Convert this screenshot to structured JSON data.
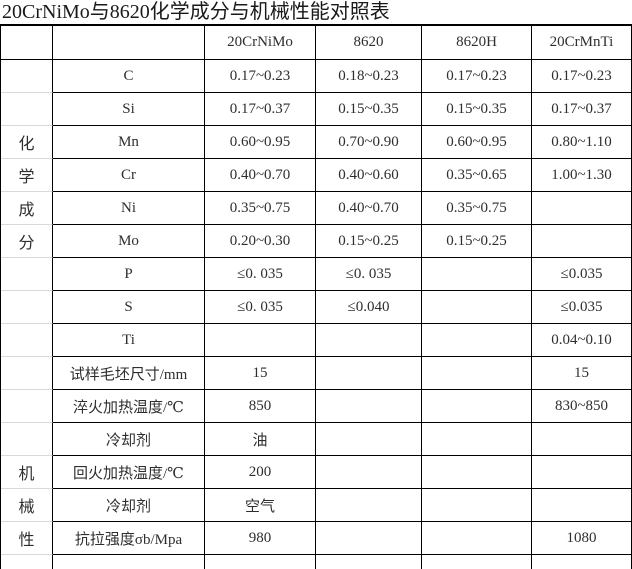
{
  "title": "20CrNiMo与8620化学成分与机械性能对照表",
  "colors": {
    "border": "#000000",
    "gridline": "#d9d9d9",
    "text": "#2e2e2e",
    "background": "#ffffff"
  },
  "table": {
    "rows": [
      {
        "cells": [
          "",
          "",
          "20CrNiMo",
          "8620",
          "8620H",
          "20CrMnTi"
        ]
      },
      {
        "cells": [
          "",
          "C",
          "0.17~0.23",
          "0.18~0.23",
          "0.17~0.23",
          "0.17~0.23"
        ]
      },
      {
        "cells": [
          "",
          "Si",
          "0.17~0.37",
          "0.15~0.35",
          "0.15~0.35",
          "0.17~0.37"
        ]
      },
      {
        "cells": [
          "化",
          "Mn",
          "0.60~0.95",
          "0.70~0.90",
          "0.60~0.95",
          "0.80~1.10"
        ]
      },
      {
        "cells": [
          "学",
          "Cr",
          "0.40~0.70",
          "0.40~0.60",
          "0.35~0.65",
          "1.00~1.30"
        ]
      },
      {
        "cells": [
          "成",
          "Ni",
          "0.35~0.75",
          "0.40~0.70",
          "0.35~0.75",
          ""
        ]
      },
      {
        "cells": [
          "分",
          "Mo",
          "0.20~0.30",
          "0.15~0.25",
          "0.15~0.25",
          ""
        ]
      },
      {
        "cells": [
          "",
          "P",
          "≤0. 035",
          "≤0. 035",
          "",
          "≤0.035"
        ]
      },
      {
        "cells": [
          "",
          "S",
          "≤0. 035",
          "≤0.040",
          "",
          "≤0.035"
        ]
      },
      {
        "cells": [
          "",
          "Ti",
          "",
          "",
          "",
          "0.04~0.10"
        ]
      },
      {
        "cells": [
          "",
          "试样毛坯尺寸/mm",
          "15",
          "",
          "",
          "15"
        ]
      },
      {
        "cells": [
          "",
          "淬火加热温度/℃",
          "850",
          "",
          "",
          "830~850"
        ]
      },
      {
        "cells": [
          "",
          "冷却剂",
          "油",
          "",
          "",
          ""
        ]
      },
      {
        "cells": [
          "机",
          "回火加热温度/℃",
          "200",
          "",
          "",
          ""
        ]
      },
      {
        "cells": [
          "械",
          "冷却剂",
          "空气",
          "",
          "",
          ""
        ]
      },
      {
        "cells": [
          "性",
          "抗拉强度σb/Mpa",
          "980",
          "",
          "",
          "1080"
        ]
      },
      {
        "cells": [
          "",
          "",
          "",
          "",
          "",
          ""
        ]
      }
    ]
  }
}
